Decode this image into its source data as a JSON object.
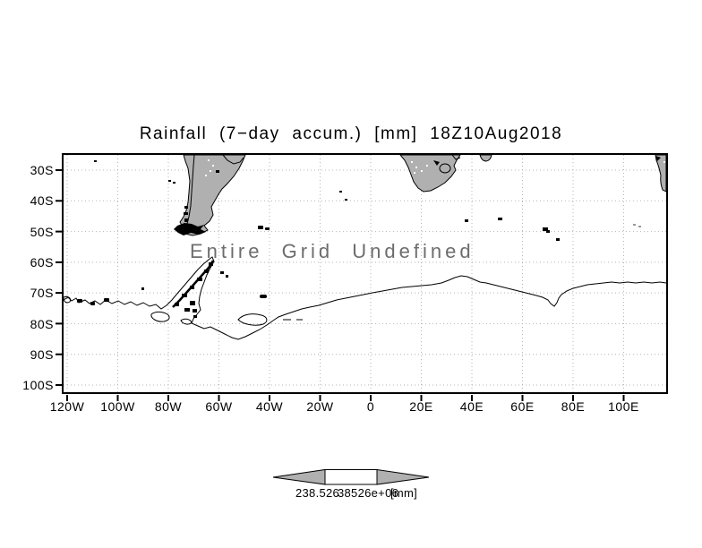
{
  "title": "Rainfall (7−day accum.) [mm] 18Z10Aug2018",
  "map": {
    "message": "Entire Grid Undefined"
  },
  "axes": {
    "y_ticks": [
      "30S",
      "40S",
      "50S",
      "60S",
      "70S",
      "80S",
      "90S",
      "100S"
    ],
    "x_ticks": [
      "120W",
      "100W",
      "80W",
      "60W",
      "40W",
      "20W",
      "0",
      "20E",
      "40E",
      "60E",
      "80E",
      "100E"
    ]
  },
  "colorbar": {
    "left_label": "238.526",
    "right_label": "38526e+06",
    "units_label": "[mm]",
    "composite_reading": "238.52638526e+06[mm]"
  },
  "colors": {
    "land": "#b0b0b0",
    "grid": "#b4b4b4",
    "coastline": "#000000",
    "message_text": "#6d6d6d",
    "background": "#ffffff"
  }
}
